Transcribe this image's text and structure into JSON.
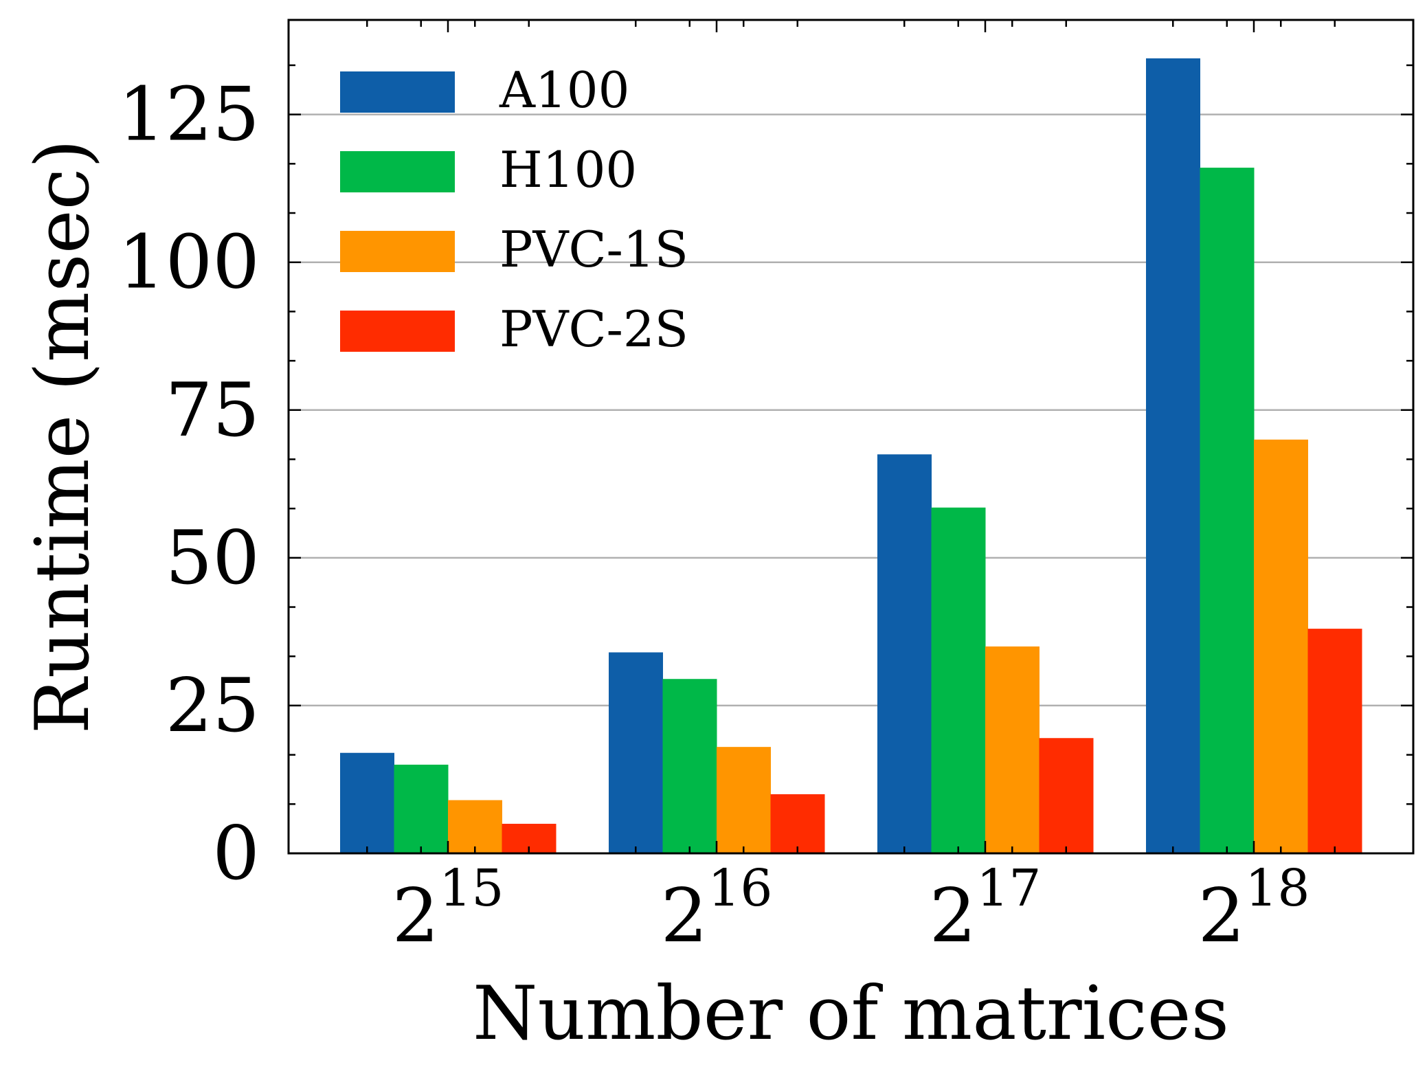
{
  "chart_data": {
    "type": "bar",
    "title": "",
    "xlabel": "Number of matrices",
    "ylabel": "Runtime (msec)",
    "categories": [
      {
        "base": "2",
        "exp": "15"
      },
      {
        "base": "2",
        "exp": "16"
      },
      {
        "base": "2",
        "exp": "17"
      },
      {
        "base": "2",
        "exp": "18"
      }
    ],
    "ylim": [
      0,
      141
    ],
    "yticks": [
      0,
      25,
      50,
      75,
      100,
      125
    ],
    "grid": "horizontal",
    "legend": "top-left",
    "series": [
      {
        "name": "A100",
        "color": "#0e5ea8",
        "values": [
          17.0,
          34.0,
          67.5,
          134.5
        ]
      },
      {
        "name": "H100",
        "color": "#00b848",
        "values": [
          15.0,
          29.5,
          58.5,
          116.0
        ]
      },
      {
        "name": "PVC-1S",
        "color": "#ff9500",
        "values": [
          9.0,
          18.0,
          35.0,
          70.0
        ]
      },
      {
        "name": "PVC-2S",
        "color": "#ff2c00",
        "values": [
          5.0,
          10.0,
          19.5,
          38.0
        ]
      }
    ]
  }
}
